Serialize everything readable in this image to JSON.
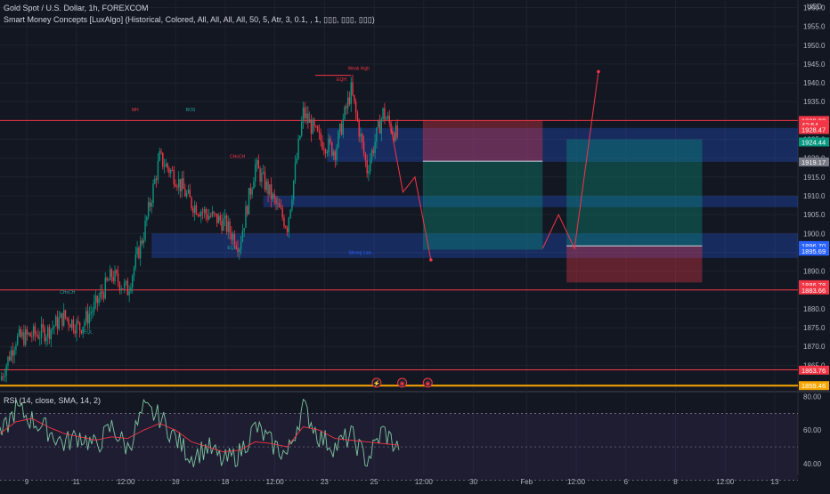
{
  "header": {
    "symbol_line": "Gold Spot / U.S. Dollar, 1h, FOREXCOM",
    "indicator_line": "Smart Money Concepts [LuxAlgo] (Historical, Colored, All, All, All, All, 50, 5, Atr, 3, 0.1, , 1, ▯▯▯, ▯▯▯, ▯▯▯)",
    "rsi_line": "RSI (14, close, SMA, 14, 2)"
  },
  "currency_label": "USD",
  "price_tags": [
    {
      "text": "1930.00",
      "price": 1930.0,
      "color": "#f23645"
    },
    {
      "text": "42:54",
      "price": 1928.9,
      "color": "#f23645"
    },
    {
      "text": "1928.47",
      "price": 1927.6,
      "color": "#f23645"
    },
    {
      "text": "1924.44",
      "price": 1924.3,
      "color": "#089981"
    },
    {
      "text": "1919.17",
      "price": 1919.0,
      "color": "#787b86"
    },
    {
      "text": "1896.70",
      "price": 1896.8,
      "color": "#2962ff"
    },
    {
      "text": "1895.69",
      "price": 1895.3,
      "color": "#2962ff"
    },
    {
      "text": "1886.78",
      "price": 1886.4,
      "color": "#f23645"
    },
    {
      "text": "1883.66",
      "price": 1885.0,
      "color": "#f23645"
    },
    {
      "text": "1863.76",
      "price": 1863.7,
      "color": "#f23645"
    },
    {
      "text": "1859.46",
      "price": 1859.6,
      "color": "#f7a600"
    }
  ],
  "smc_labels": [
    {
      "text": "MH",
      "color": "#f23645"
    },
    {
      "text": "BOS",
      "color": "#26a69a"
    },
    {
      "text": "Weak High",
      "color": "#f23645"
    },
    {
      "text": "EQH",
      "color": "#f23645"
    },
    {
      "text": "CHoCH",
      "color": "#f23645"
    },
    {
      "text": "EQL",
      "color": "#26a69a"
    },
    {
      "text": "EQL",
      "color": "#26a69a"
    },
    {
      "text": "CHoCH",
      "color": "#26a69a"
    },
    {
      "text": "Strong Low",
      "color": "#2962ff"
    }
  ],
  "event_icons": [
    {
      "glyph": "⚡",
      "color": "#f23645"
    },
    {
      "glyph": "◉",
      "color": "#f23645"
    },
    {
      "glyph": "◉",
      "color": "#f23645"
    }
  ],
  "chart_data": [
    {
      "type": "candlestick",
      "title": "Gold Spot / U.S. Dollar, 1h, FOREXCOM",
      "ylabel": "USD",
      "ylim": [
        1858,
        1962
      ],
      "y_ticks": [
        1865,
        1870,
        1875,
        1880,
        1885,
        1890,
        1895,
        1900,
        1905,
        1910,
        1915,
        1920,
        1925,
        1930,
        1935,
        1940,
        1945,
        1950,
        1955,
        1960
      ],
      "x_ticks": [
        "9",
        "11",
        "12:00",
        "16",
        "18",
        "12:00",
        "23",
        "25",
        "12:00",
        "30",
        "Feb",
        "12:00",
        "6",
        "8",
        "12:00",
        "13"
      ],
      "x_range": [
        0,
        100
      ],
      "grid": true,
      "ohlc_anchors": {
        "x": [
          0,
          2,
          4,
          6,
          8,
          10,
          12,
          14,
          16,
          18,
          20,
          22,
          24,
          26,
          28,
          30,
          32,
          34,
          36,
          38,
          40,
          42,
          44,
          46,
          48,
          50
        ],
        "close": [
          1861,
          1872,
          1873,
          1874,
          1878,
          1875,
          1881,
          1889,
          1885,
          1900,
          1920,
          1915,
          1908,
          1905,
          1903,
          1897,
          1918,
          1910,
          1902,
          1932,
          1925,
          1922,
          1938,
          1917,
          1932,
          1925
        ]
      },
      "projections": [
        {
          "name": "bearish path",
          "color": "#f23645",
          "x": [
            49,
            50.5,
            52,
            54
          ],
          "y": [
            1928,
            1911,
            1915,
            1893
          ]
        },
        {
          "name": "bullish path",
          "color": "#f23645",
          "x": [
            68,
            70,
            72,
            75
          ],
          "y": [
            1896,
            1905,
            1896,
            1943
          ]
        }
      ],
      "horizontal_lines": [
        {
          "price": 1930.0,
          "color": "#f23645"
        },
        {
          "price": 1885.0,
          "color": "#f23645"
        },
        {
          "price": 1863.8,
          "color": "#f23645"
        },
        {
          "price": 1859.6,
          "color": "#f7a600"
        },
        {
          "price": 1942.0,
          "color": "#f23645"
        }
      ],
      "order_blocks": [
        {
          "from_x": 41,
          "to_x": 100,
          "low": 1919,
          "high": 1928,
          "color": "#2962ff"
        },
        {
          "from_x": 33,
          "to_x": 100,
          "low": 1907,
          "high": 1910,
          "color": "#2962ff"
        },
        {
          "from_x": 19,
          "to_x": 100,
          "low": 1893.5,
          "high": 1900,
          "color": "#2962ff"
        }
      ],
      "position_tools": [
        {
          "kind": "short",
          "from_x": 53,
          "to_x": 68,
          "entry": 1919.2,
          "stop": 1930.0,
          "target": 1895.7
        },
        {
          "kind": "long",
          "from_x": 71,
          "to_x": 88,
          "entry": 1896.7,
          "stop": 1887.0,
          "target": 1925.0
        }
      ]
    },
    {
      "type": "line",
      "title": "RSI (14, close, SMA, 14, 2)",
      "ylim": [
        33,
        83
      ],
      "y_ticks": [
        40.0,
        60.0,
        80.0
      ],
      "bands": [
        30,
        70
      ],
      "x_range": [
        0,
        100
      ],
      "series": [
        {
          "color": "#7ec8a0",
          "x": [
            0,
            2,
            4,
            6,
            8,
            10,
            12,
            14,
            16,
            18,
            20,
            22,
            24,
            26,
            28,
            30,
            32,
            34,
            36,
            38,
            40,
            42,
            44,
            46,
            48,
            50
          ],
          "values": [
            55,
            73,
            66,
            60,
            52,
            57,
            50,
            62,
            49,
            72,
            68,
            55,
            44,
            50,
            41,
            46,
            62,
            52,
            45,
            74,
            56,
            50,
            57,
            42,
            60,
            48
          ]
        },
        {
          "color": "#f23645",
          "x": [
            0,
            2,
            4,
            6,
            8,
            10,
            12,
            14,
            16,
            18,
            20,
            22,
            24,
            26,
            28,
            30,
            32,
            34,
            36,
            38,
            40,
            42,
            44,
            46,
            48,
            50
          ],
          "values": [
            58,
            65,
            67,
            62,
            58,
            56,
            54,
            56,
            55,
            60,
            64,
            60,
            53,
            50,
            47,
            48,
            53,
            52,
            50,
            62,
            60,
            55,
            54,
            53,
            52,
            51
          ]
        }
      ]
    }
  ]
}
